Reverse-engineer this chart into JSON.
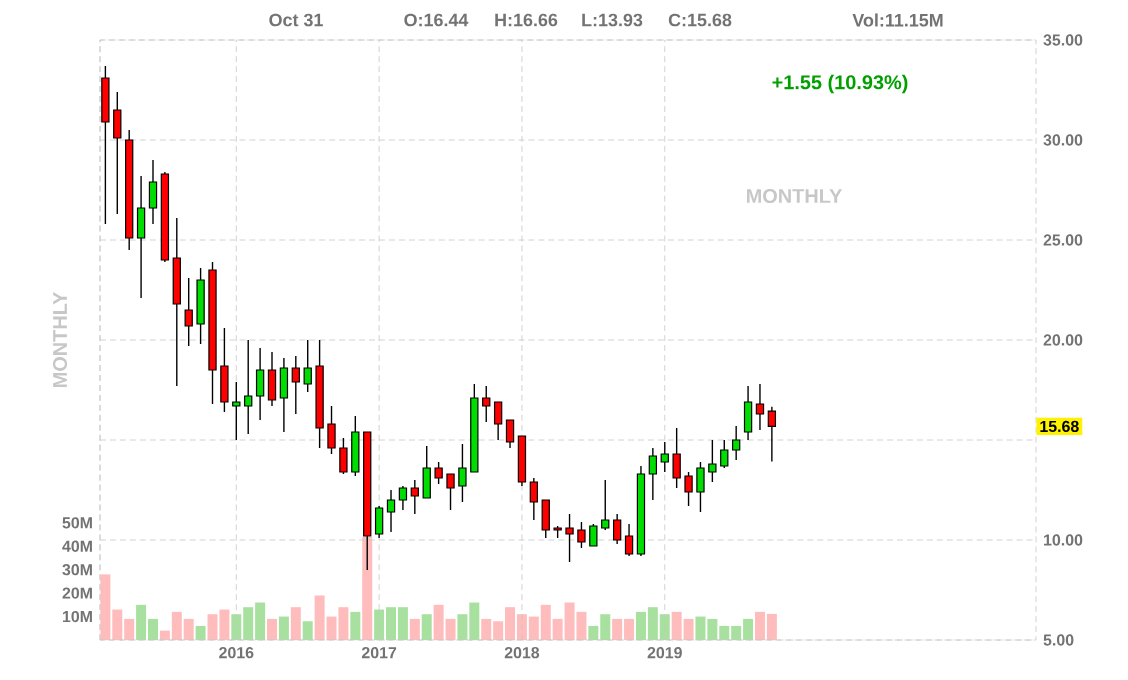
{
  "chart_data": {
    "type": "candlestick",
    "annotations": [
      "Oct 31",
      "O:16.44",
      "H:16.66",
      "L:13.93",
      "C:15.68",
      "Vol:11.15M",
      "+1.55 (10.93%)",
      "MONTHLY",
      "MONTHLY",
      {
        "text": "15.68",
        "y": 15.68
      }
    ],
    "x": [
      "2015-02",
      "2015-03",
      "2015-04",
      "2015-05",
      "2015-06",
      "2015-07",
      "2015-08",
      "2015-09",
      "2015-10",
      "2015-11",
      "2015-12",
      "2016-01",
      "2016-02",
      "2016-03",
      "2016-04",
      "2016-05",
      "2016-06",
      "2016-07",
      "2016-08",
      "2016-09",
      "2016-10",
      "2016-11",
      "2016-12",
      "2017-01",
      "2017-02",
      "2017-03",
      "2017-04",
      "2017-05",
      "2017-06",
      "2017-07",
      "2017-08",
      "2017-09",
      "2017-10",
      "2017-11",
      "2017-12",
      "2018-01",
      "2018-02",
      "2018-03",
      "2018-04",
      "2018-05",
      "2018-06",
      "2018-07",
      "2018-08",
      "2018-09",
      "2018-10",
      "2018-11",
      "2018-12",
      "2019-01",
      "2019-02",
      "2019-03",
      "2019-04",
      "2019-05",
      "2019-06",
      "2019-07",
      "2019-08",
      "2019-09",
      "2019-10"
    ],
    "series": [
      {
        "ohlc": [
          [
            33.1,
            33.7,
            25.8,
            30.9
          ],
          [
            31.5,
            32.4,
            26.3,
            30.1
          ],
          [
            30.0,
            30.5,
            24.5,
            25.1
          ],
          [
            25.1,
            28.2,
            22.1,
            26.6
          ],
          [
            26.6,
            29.0,
            25.8,
            27.9
          ],
          [
            28.3,
            28.4,
            23.9,
            24.0
          ],
          [
            24.1,
            26.1,
            17.7,
            21.8
          ],
          [
            21.5,
            23.1,
            19.7,
            20.7
          ],
          [
            20.8,
            23.6,
            19.8,
            23.0
          ],
          [
            23.5,
            23.9,
            16.8,
            18.5
          ],
          [
            18.7,
            20.6,
            16.4,
            16.9
          ],
          [
            16.7,
            17.9,
            15.0,
            16.9
          ],
          [
            16.7,
            20.0,
            15.3,
            17.2
          ],
          [
            17.2,
            19.6,
            16.0,
            18.5
          ],
          [
            18.5,
            19.4,
            16.7,
            17.0
          ],
          [
            17.1,
            19.1,
            15.4,
            18.6
          ],
          [
            18.6,
            19.2,
            16.3,
            17.9
          ],
          [
            17.8,
            20.0,
            17.4,
            18.6
          ],
          [
            18.7,
            20.0,
            14.6,
            15.6
          ],
          [
            15.8,
            16.7,
            14.3,
            14.6
          ],
          [
            14.6,
            15.1,
            13.3,
            13.4
          ],
          [
            13.4,
            16.2,
            13.2,
            15.4
          ],
          [
            15.4,
            15.4,
            8.5,
            10.2
          ],
          [
            10.3,
            11.7,
            10.1,
            11.6
          ],
          [
            11.4,
            12.5,
            10.4,
            12.0
          ],
          [
            12.0,
            12.7,
            11.5,
            12.6
          ],
          [
            12.6,
            13.0,
            11.3,
            12.2
          ],
          [
            12.1,
            14.7,
            12.1,
            13.6
          ],
          [
            13.6,
            13.9,
            12.8,
            13.1
          ],
          [
            13.3,
            13.3,
            11.5,
            12.6
          ],
          [
            12.7,
            14.8,
            11.9,
            13.6
          ],
          [
            13.4,
            17.8,
            13.4,
            17.1
          ],
          [
            17.1,
            17.7,
            15.9,
            16.7
          ],
          [
            16.9,
            16.9,
            15.0,
            15.8
          ],
          [
            16.0,
            16.0,
            14.6,
            14.9
          ],
          [
            15.2,
            15.2,
            12.7,
            12.9
          ],
          [
            12.9,
            13.1,
            11.0,
            11.9
          ],
          [
            12.0,
            12.0,
            10.1,
            10.5
          ],
          [
            10.6,
            10.7,
            10.1,
            10.5
          ],
          [
            10.6,
            11.3,
            8.9,
            10.3
          ],
          [
            10.5,
            10.9,
            9.6,
            9.9
          ],
          [
            9.7,
            10.8,
            9.7,
            10.7
          ],
          [
            10.6,
            13.0,
            10.5,
            11.0
          ],
          [
            11.0,
            11.3,
            9.8,
            10.0
          ],
          [
            10.2,
            10.8,
            9.2,
            9.3
          ],
          [
            9.3,
            13.7,
            9.2,
            13.3
          ],
          [
            13.3,
            14.6,
            12.0,
            14.2
          ],
          [
            13.9,
            14.9,
            13.4,
            14.3
          ],
          [
            14.3,
            15.6,
            12.6,
            13.1
          ],
          [
            13.2,
            13.4,
            11.7,
            12.4
          ],
          [
            12.4,
            13.9,
            11.4,
            13.6
          ],
          [
            13.4,
            15.0,
            12.9,
            13.8
          ],
          [
            13.7,
            15.0,
            13.6,
            14.5
          ],
          [
            14.5,
            15.7,
            14.0,
            15.0
          ],
          [
            15.4,
            17.7,
            15.0,
            16.9
          ],
          [
            16.8,
            17.8,
            15.5,
            16.3
          ],
          [
            16.44,
            16.66,
            13.93,
            15.68
          ]
        ],
        "colors": [
          "#ff0000",
          "#ff0000",
          "#ff0000",
          "#00dd00",
          "#00dd00",
          "#ff0000",
          "#ff0000",
          "#ff0000",
          "#00dd00",
          "#ff0000",
          "#ff0000",
          "#00dd00",
          "#00dd00",
          "#00dd00",
          "#ff0000",
          "#00dd00",
          "#ff0000",
          "#00dd00",
          "#ff0000",
          "#ff0000",
          "#ff0000",
          "#00dd00",
          "#ff0000",
          "#00dd00",
          "#00dd00",
          "#00dd00",
          "#ff0000",
          "#00dd00",
          "#ff0000",
          "#ff0000",
          "#00dd00",
          "#00dd00",
          "#ff0000",
          "#ff0000",
          "#ff0000",
          "#ff0000",
          "#ff0000",
          "#ff0000",
          "#ff0000",
          "#ff0000",
          "#ff0000",
          "#00dd00",
          "#00dd00",
          "#ff0000",
          "#ff0000",
          "#00dd00",
          "#00dd00",
          "#00dd00",
          "#ff0000",
          "#ff0000",
          "#00dd00",
          "#00dd00",
          "#00dd00",
          "#00dd00",
          "#00dd00",
          "#ff0000",
          "#ff0000"
        ]
      },
      {
        "type": "bar",
        "axis": "y2",
        "values": [
          28,
          13,
          9,
          15,
          9,
          4,
          12,
          9,
          6,
          11,
          13,
          11,
          14,
          16,
          9,
          10,
          14,
          8,
          19,
          10,
          14,
          12,
          44,
          13,
          14,
          14,
          9,
          11,
          15,
          9,
          11,
          16,
          9,
          8,
          14,
          11,
          10,
          15,
          9,
          16,
          12,
          6,
          11,
          9,
          9,
          12,
          14,
          11,
          12,
          9,
          10,
          9,
          6,
          6,
          9,
          12,
          11.15
        ],
        "colors": [
          "#ffbcbc",
          "#ffbcbc",
          "#ffbcbc",
          "#a8e0a0",
          "#a8e0a0",
          "#ffbcbc",
          "#ffbcbc",
          "#ffbcbc",
          "#a8e0a0",
          "#ffbcbc",
          "#ffbcbc",
          "#a8e0a0",
          "#a8e0a0",
          "#a8e0a0",
          "#ffbcbc",
          "#a8e0a0",
          "#ffbcbc",
          "#a8e0a0",
          "#ffbcbc",
          "#ffbcbc",
          "#ffbcbc",
          "#a8e0a0",
          "#ffbcbc",
          "#a8e0a0",
          "#a8e0a0",
          "#a8e0a0",
          "#ffbcbc",
          "#a8e0a0",
          "#ffbcbc",
          "#ffbcbc",
          "#a8e0a0",
          "#a8e0a0",
          "#ffbcbc",
          "#ffbcbc",
          "#ffbcbc",
          "#ffbcbc",
          "#ffbcbc",
          "#ffbcbc",
          "#ffbcbc",
          "#ffbcbc",
          "#ffbcbc",
          "#a8e0a0",
          "#a8e0a0",
          "#ffbcbc",
          "#ffbcbc",
          "#a8e0a0",
          "#a8e0a0",
          "#a8e0a0",
          "#ffbcbc",
          "#ffbcbc",
          "#a8e0a0",
          "#a8e0a0",
          "#a8e0a0",
          "#a8e0a0",
          "#a8e0a0",
          "#ffbcbc",
          "#ffbcbc"
        ]
      }
    ],
    "xlim": [
      "2015-01-18",
      "2021-08-07"
    ],
    "xticks": [
      "2016",
      "2017",
      "2018",
      "2019"
    ],
    "ylim": [
      5,
      35
    ],
    "yticks": [
      {
        "value": 5,
        "label": "5.00"
      },
      {
        "value": 10,
        "label": "10.00"
      },
      {
        "value": 15,
        "label": null
      },
      {
        "value": 20,
        "label": "20.00"
      },
      {
        "value": 25,
        "label": "25.00"
      },
      {
        "value": 30,
        "label": "30.00"
      },
      {
        "value": 35,
        "label": "35.00"
      }
    ],
    "y2lim": [
      0,
      256
    ],
    "y2ticks": [
      {
        "value": 10,
        "label": "10M"
      },
      {
        "value": 20,
        "label": "20M"
      },
      {
        "value": 30,
        "label": "30M"
      },
      {
        "value": 40,
        "label": "40M"
      },
      {
        "value": 50,
        "label": "50M"
      }
    ],
    "grid": true
  }
}
